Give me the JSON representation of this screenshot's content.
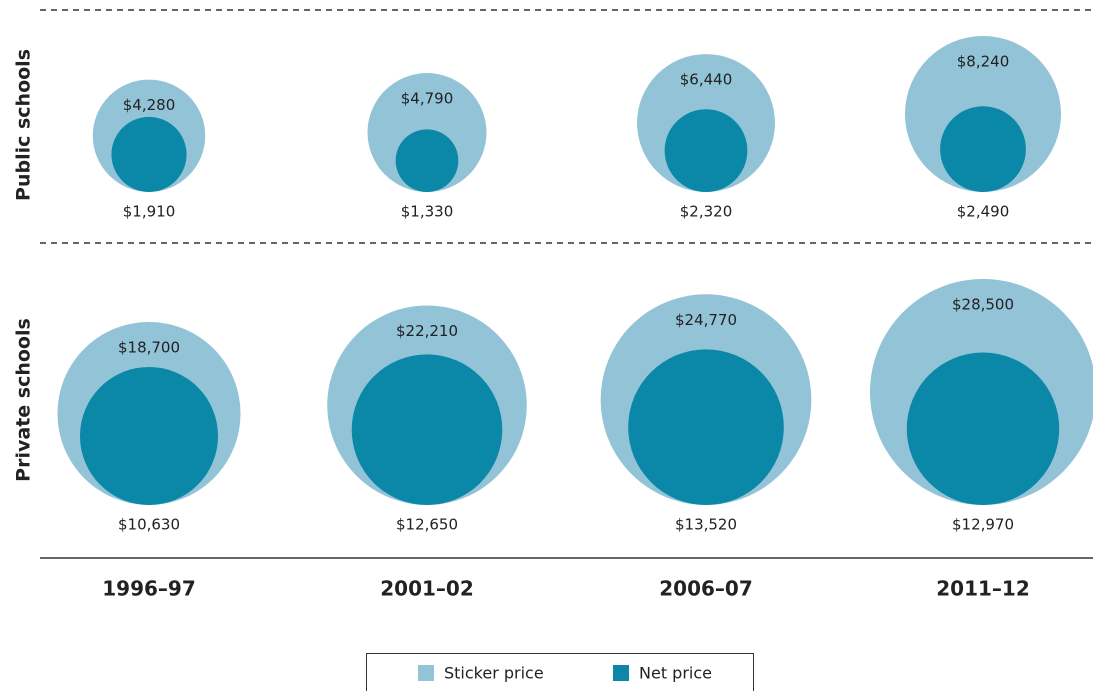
{
  "chart_data": {
    "type": "bubble",
    "categories": [
      "1996–97",
      "2001–02",
      "2006–07",
      "2011–12"
    ],
    "rows": [
      "Public schools",
      "Private schools"
    ],
    "series": [
      {
        "name": "Sticker price",
        "color": "#93c3d7",
        "values": [
          [
            4280,
            4790,
            6440,
            8240
          ],
          [
            18700,
            22210,
            24770,
            28500
          ]
        ],
        "value_labels": [
          [
            "$4,280",
            "$4,790",
            "$6,440",
            "$8,240"
          ],
          [
            "$18,700",
            "$22,210",
            "$24,770",
            "$28,500"
          ]
        ]
      },
      {
        "name": "Net price",
        "color": "#0b87a8",
        "values": [
          [
            1910,
            1330,
            2320,
            2490
          ],
          [
            10630,
            12650,
            13520,
            12970
          ]
        ],
        "value_labels": [
          [
            "$1,910",
            "$1,330",
            "$2,320",
            "$2,490"
          ],
          [
            "$10,630",
            "$12,650",
            "$13,520",
            "$12,970"
          ]
        ]
      }
    ]
  }
}
